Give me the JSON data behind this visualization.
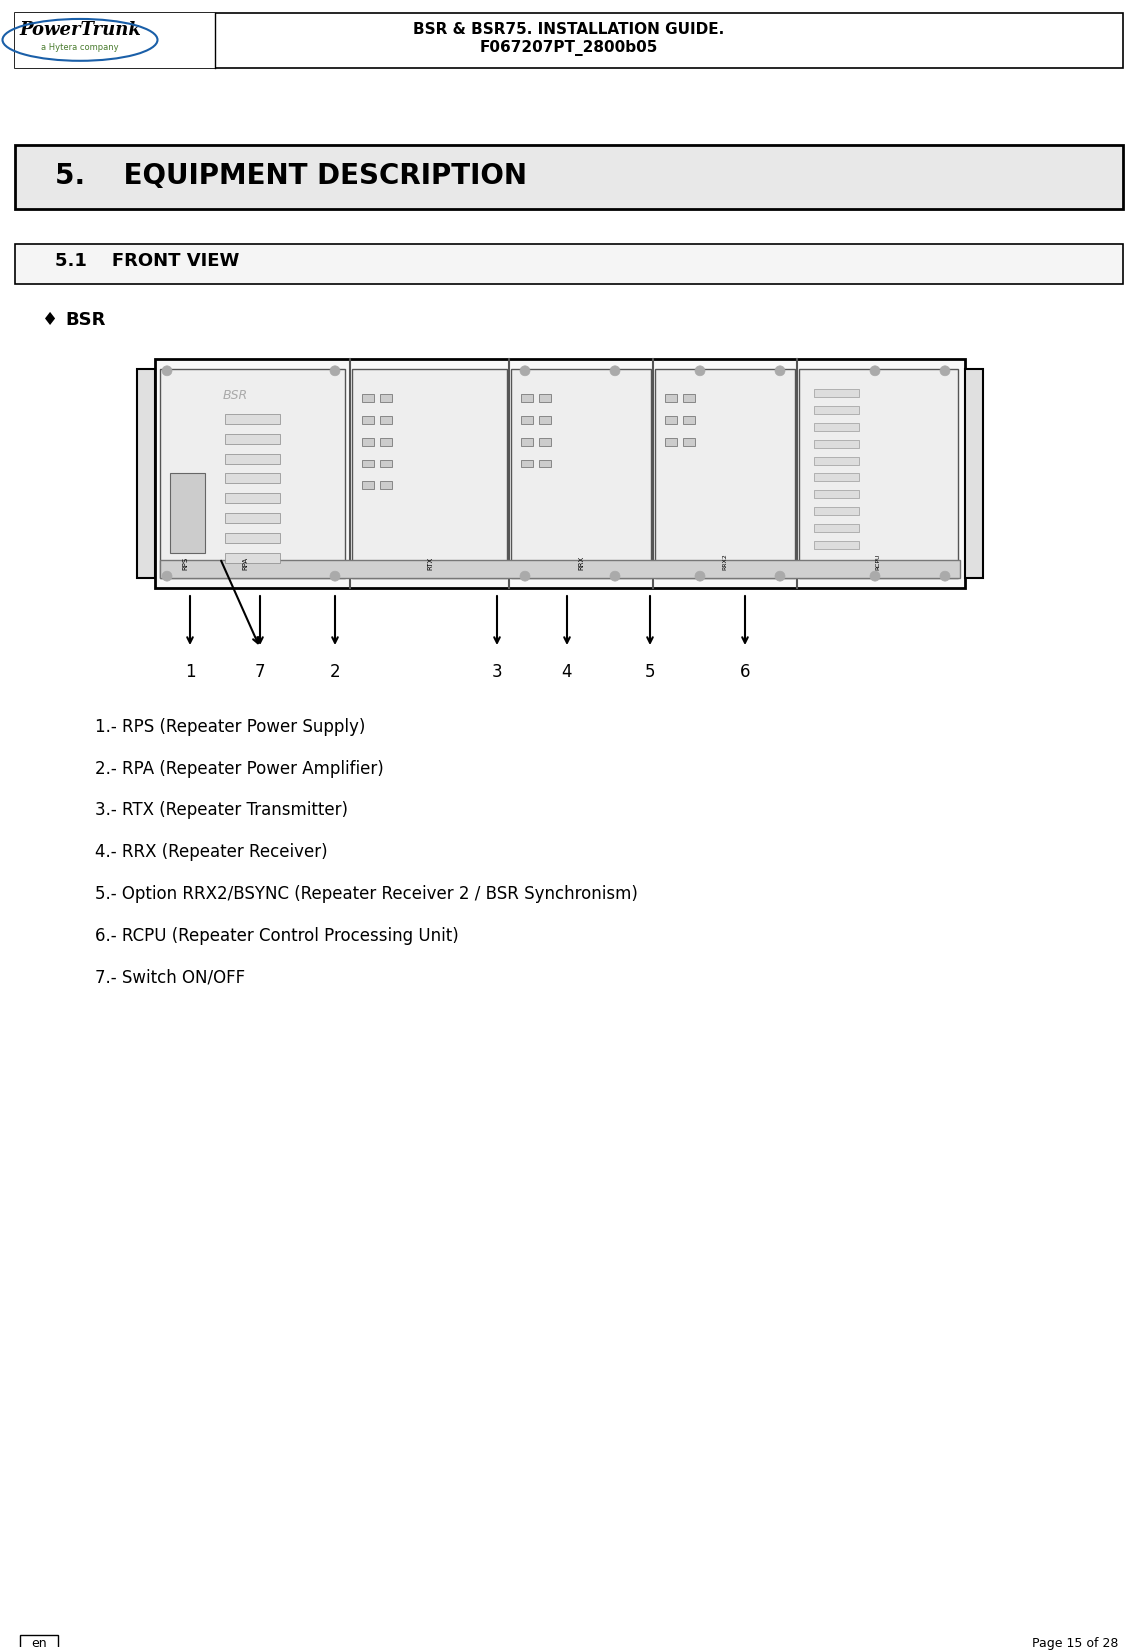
{
  "page_title_line1": "BSR & BSR75. INSTALLATION GUIDE.",
  "page_title_line2": "F067207PT_2800b05",
  "section_title": "5.    EQUIPMENT DESCRIPTION",
  "subsection_title": "5.1    FRONT VIEW",
  "bullet_label": "BSR",
  "items": [
    "1.- RPS (Repeater Power Supply)",
    "2.- RPA (Repeater Power Amplifier)",
    "3.- RTX (Repeater Transmitter)",
    "4.- RRX (Repeater Receiver)",
    "5.- Option RRX2/BSYNC (Repeater Receiver 2 / BSR Synchronism)",
    "6.- RCPU (Repeater Control Processing Unit)",
    "7.- Switch ON/OFF"
  ],
  "footer_left": "en",
  "footer_right": "Page 15 of 28",
  "bg_color": "#ffffff",
  "header_bg": "#ffffff",
  "section_bg": "#e8e8e8",
  "subsection_bg": "#f0f0f0",
  "border_color": "#000000",
  "text_color": "#000000"
}
